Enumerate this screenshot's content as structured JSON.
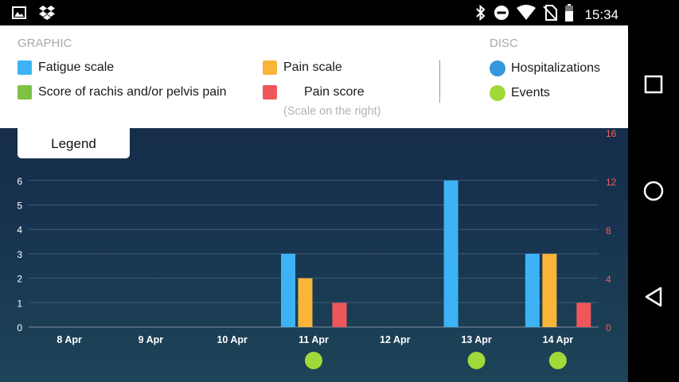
{
  "status_bar": {
    "time": "15:34",
    "left_icons": [
      "image-icon",
      "dropbox-icon"
    ],
    "right_icons": [
      "bluetooth-icon",
      "do-not-disturb-icon",
      "wifi-icon",
      "no-sim-icon",
      "battery-icon"
    ]
  },
  "legend": {
    "graphic_title": "GRAPHIC",
    "disc_title": "DISC",
    "tab_label": "Legend",
    "items": {
      "fatigue": "Fatigue scale",
      "pain_scale": "Pain scale",
      "rachis": "Score of rachis and/or pelvis pain",
      "pain_score": "Pain score",
      "pain_score_note": "(Scale on the right)",
      "hospitalizations": "Hospitalizations",
      "events": "Events"
    }
  },
  "colors": {
    "fatigue": "#3db3f5",
    "pain_scale": "#f9b43a",
    "rachis": "#7ec143",
    "pain_score": "#f0575b",
    "hospitalizations": "#3498db",
    "events": "#a2d93a",
    "left_axis_text": "#ffffff",
    "right_axis_text": "#f25f5c"
  },
  "chart_data": {
    "type": "bar",
    "categories": [
      "8 Apr",
      "9 Apr",
      "10 Apr",
      "11 Apr",
      "12 Apr",
      "13 Apr",
      "14 Apr"
    ],
    "series": [
      {
        "name": "Fatigue scale",
        "axis": "left",
        "values": [
          0,
          0,
          0,
          3,
          0,
          6,
          3
        ]
      },
      {
        "name": "Pain scale",
        "axis": "left",
        "values": [
          0,
          0,
          0,
          2,
          0,
          0,
          3
        ]
      },
      {
        "name": "Score of rachis and/or pelvis pain",
        "axis": "left",
        "values": [
          0,
          0,
          0,
          0,
          0,
          0,
          0
        ]
      },
      {
        "name": "Pain score",
        "axis": "right",
        "values": [
          0,
          0,
          0,
          2,
          0,
          0,
          2
        ]
      }
    ],
    "events": [
      0,
      0,
      0,
      1,
      0,
      1,
      1
    ],
    "hospitalizations": [
      0,
      0,
      0,
      0,
      0,
      0,
      0
    ],
    "y_left": {
      "range": [
        0,
        6
      ],
      "ticks": [
        "0",
        "1",
        "2",
        "3",
        "4",
        "5",
        "6"
      ]
    },
    "y_right": {
      "range": [
        0,
        16
      ],
      "ticks": [
        "0",
        "4",
        "8",
        "12",
        "16"
      ]
    },
    "grid": true
  }
}
